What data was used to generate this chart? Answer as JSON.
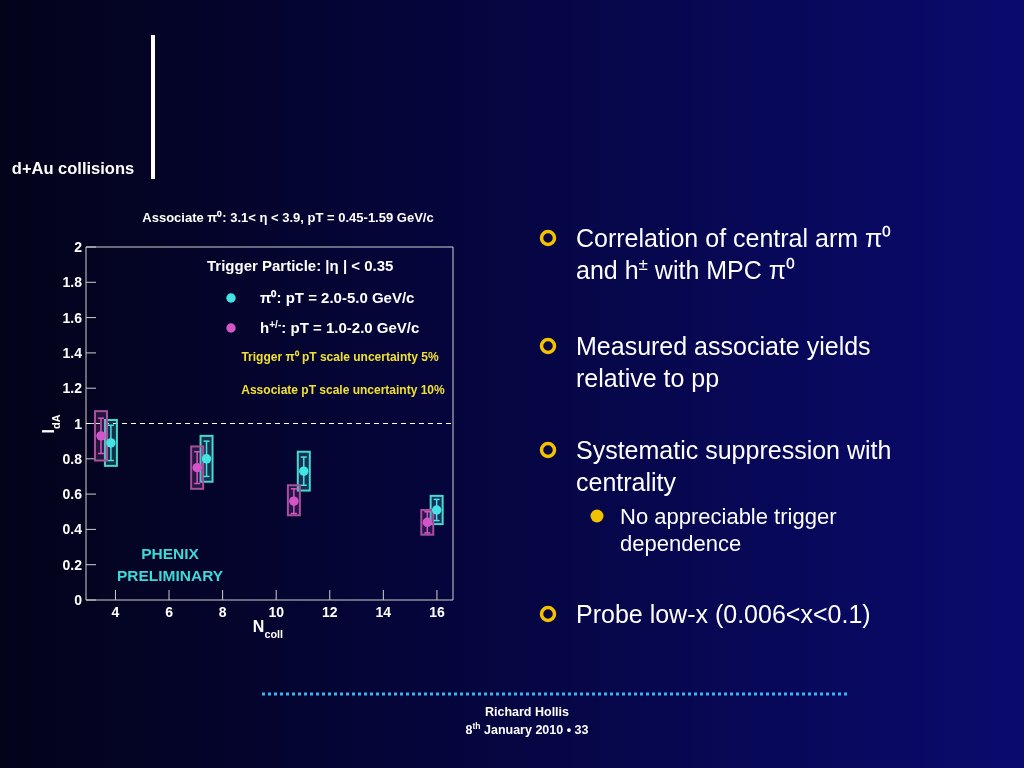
{
  "chart_data": {
    "type": "scatter",
    "title": "Associate π⁰: 3.1< η < 3.9, pT = 0.45-1.59 GeV/c",
    "xlabel": "N$_{coll}$",
    "ylabel": "I$_{dA}$",
    "legend_title": "Trigger Particle: |η | < 0.35",
    "xlim": [
      2.9,
      16.6
    ],
    "xticks": [
      4,
      6,
      8,
      10,
      12,
      14,
      16
    ],
    "ylim": [
      0,
      2
    ],
    "yticks": [
      0,
      0.2,
      0.4,
      0.6,
      0.8,
      1,
      1.2,
      1.4,
      1.6,
      1.8,
      2
    ],
    "series": [
      {
        "name": "π⁰: pT = 2.0-5.0 GeV/c",
        "color": "#44e4e4",
        "x": [
          3.83,
          7.4,
          11.03,
          15.99
        ],
        "values": [
          0.89,
          0.8,
          0.73,
          0.51
        ],
        "errors": [
          0.1,
          0.1,
          0.08,
          0.06
        ]
      },
      {
        "name": "h$^{+/-}$: pT = 1.0-2.0 GeV/c",
        "color": "#d256c8",
        "x": [
          3.46,
          7.05,
          10.66,
          15.64
        ],
        "values": [
          0.93,
          0.75,
          0.56,
          0.44
        ],
        "errors": [
          0.1,
          0.09,
          0.07,
          0.06
        ]
      },
      {
        "type": "bar",
        "color": "#4ad8cc",
        "x": [
          3.83,
          7.4,
          11.03,
          15.99
        ],
        "base": [
          0.76,
          0.67,
          0.62,
          0.43
        ],
        "values": [
          0.26,
          0.26,
          0.22,
          0.16
        ]
      },
      {
        "type": "bar",
        "color": "#a8509a",
        "x": [
          3.46,
          7.05,
          10.66,
          15.64
        ],
        "base": [
          0.79,
          0.63,
          0.48,
          0.37
        ],
        "values": [
          0.28,
          0.24,
          0.17,
          0.14
        ]
      }
    ],
    "ref_lines": [
      {
        "axis": "y",
        "value": 1,
        "line_style": "dashed",
        "color": "#ffffff"
      }
    ],
    "marker": "circle",
    "legend": "top right",
    "annotations": [
      "Trigger π⁰ pT scale uncertainty 5%",
      "Associate pT scale uncertainty 10%",
      "PHENIX PRELIMINARY",
      "d+Au collisions",
      "Correlation of central arm π⁰ and h$^{±}$ with MPC π⁰",
      "Measured associate yields relative to pp",
      "Systematic suppression with centrality",
      "No appreciable trigger dependence",
      "Probe low-x (0.006<x<0.1)",
      "Richard Hollis",
      "8$^{th}$ January 2010 • 33"
    ]
  }
}
